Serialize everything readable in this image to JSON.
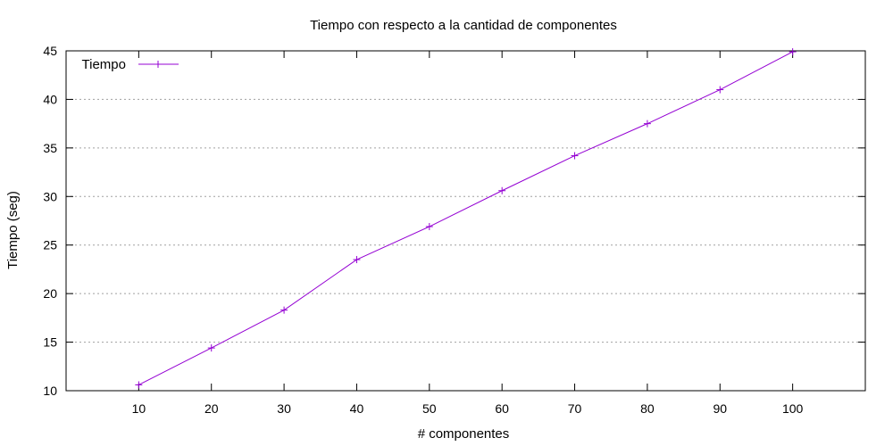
{
  "chart_data": {
    "type": "line",
    "title": "Tiempo con respecto a la cantidad de componentes",
    "xlabel": "# componentes",
    "ylabel": "Tiempo (seg)",
    "xlim": [
      0,
      110
    ],
    "ylim": [
      10,
      45
    ],
    "x_ticks": [
      10,
      20,
      30,
      40,
      50,
      60,
      70,
      80,
      90,
      100
    ],
    "y_ticks": [
      10,
      15,
      20,
      25,
      30,
      35,
      40,
      45
    ],
    "grid": "horizontal-dotted",
    "legend_position": "top-left",
    "series": [
      {
        "name": "Tiempo",
        "color": "#9400d3",
        "marker": "plus",
        "x": [
          10,
          20,
          30,
          40,
          50,
          60,
          70,
          80,
          90,
          100
        ],
        "y": [
          10.6,
          14.4,
          18.3,
          23.5,
          26.9,
          30.6,
          34.2,
          37.5,
          41.0,
          44.9
        ]
      }
    ]
  }
}
